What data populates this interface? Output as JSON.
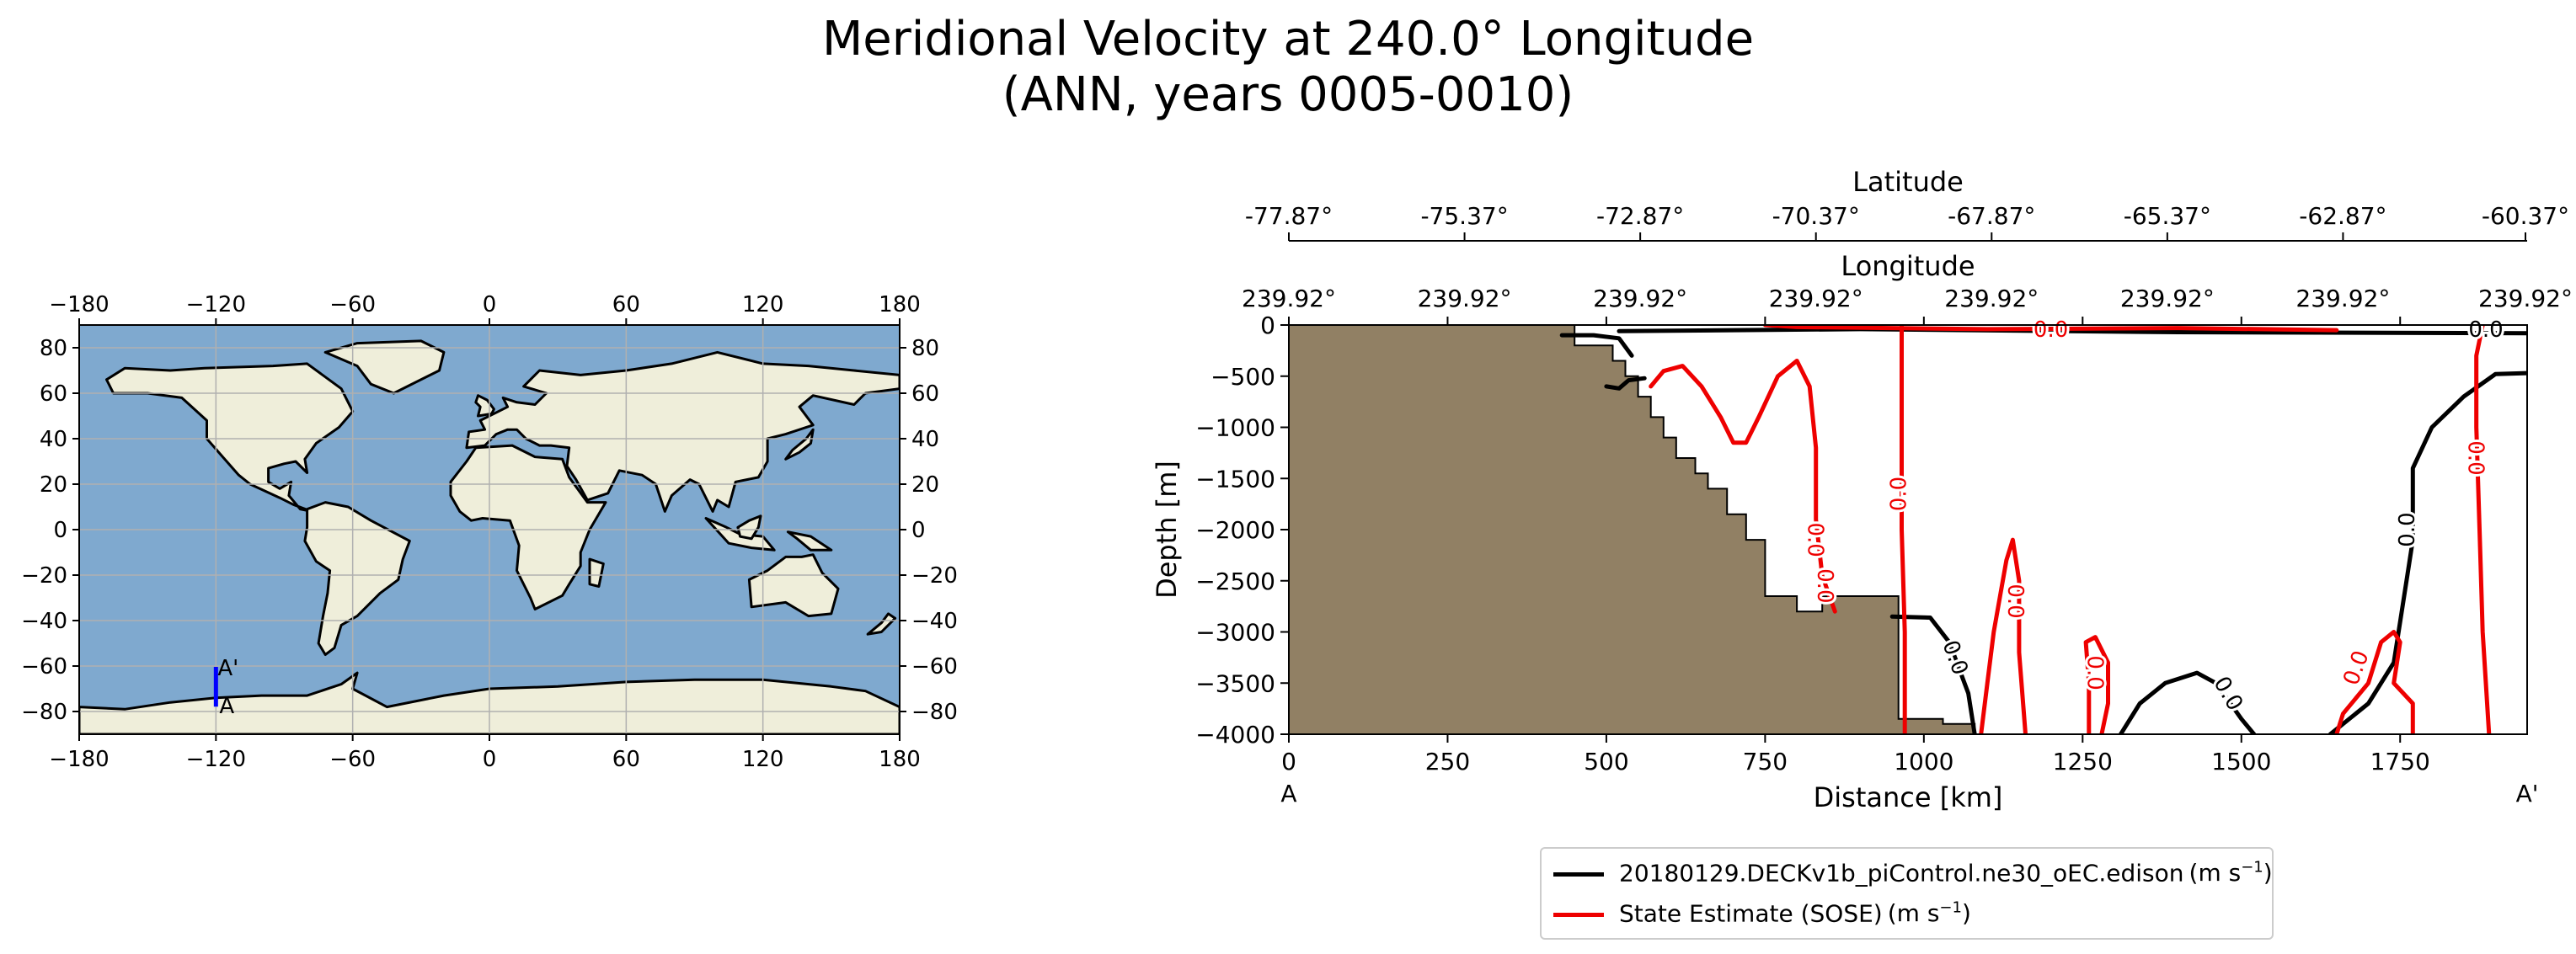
{
  "title": {
    "line1": "Meridional Velocity at 240.0° Longitude",
    "line2": "(ANN, years 0005-0010)"
  },
  "colors": {
    "ocean": "#7fa9cf",
    "land": "#efeeda",
    "bathymetry": "#918064",
    "model": "#000000",
    "obs": "#ee0000",
    "transect": "#0000ff"
  },
  "chart_data": [
    {
      "type": "map",
      "projection": "plate-carree",
      "xticks": [
        "−180",
        "−120",
        "−60",
        "0",
        "60",
        "120",
        "180"
      ],
      "yticks": [
        "80",
        "60",
        "40",
        "20",
        "0",
        "−20",
        "−40",
        "−60",
        "−80"
      ],
      "xlim": [
        -180,
        180
      ],
      "ylim": [
        -90,
        90
      ],
      "grid": true,
      "transect": {
        "lon": -120,
        "lat_start": -77.87,
        "lat_end": -60.37,
        "start_label": "A",
        "end_label": "A'"
      }
    },
    {
      "type": "contour",
      "xlabel": "Distance [km]",
      "ylabel": "Depth [m]",
      "xlim": [
        0,
        1950
      ],
      "ylim": [
        -4000,
        0
      ],
      "xticks": [
        "0",
        "250",
        "500",
        "750",
        "1000",
        "1250",
        "1500",
        "1750"
      ],
      "yticks": [
        "0",
        "−500",
        "−1000",
        "−1500",
        "−2000",
        "−2500",
        "−3000",
        "−3500",
        "−4000"
      ],
      "start_label": "A",
      "end_label": "A'",
      "top_axis_1": {
        "label": "Latitude",
        "ticks": [
          "-77.87°",
          "-75.37°",
          "-72.87°",
          "-70.37°",
          "-67.87°",
          "-65.37°",
          "-62.87°",
          "-60.37°"
        ]
      },
      "top_axis_2": {
        "label": "Longitude",
        "ticks": [
          "239.92°",
          "239.92°",
          "239.92°",
          "239.92°",
          "239.92°",
          "239.92°",
          "239.92°",
          "239.92°"
        ]
      },
      "contour_label": "0.0",
      "series": [
        {
          "name": "20180129.DECKv1b_piControl.ne30_oEC.edison",
          "unit": "(m s⁻¹)",
          "color": "#000000",
          "lines": [
            [
              [
                430,
                -100
              ],
              [
                480,
                -100
              ],
              [
                520,
                -130
              ],
              [
                540,
                -300
              ]
            ],
            [
              [
                500,
                -600
              ],
              [
                520,
                -620
              ],
              [
                535,
                -540
              ],
              [
                560,
                -520
              ]
            ],
            [
              [
                950,
                -2850
              ],
              [
                1010,
                -2860
              ],
              [
                1040,
                -3100
              ],
              [
                1070,
                -3600
              ],
              [
                1080,
                -4000
              ]
            ],
            [
              [
                1310,
                -4000
              ],
              [
                1340,
                -3700
              ],
              [
                1380,
                -3500
              ],
              [
                1430,
                -3400
              ],
              [
                1460,
                -3500
              ],
              [
                1500,
                -3850
              ],
              [
                1520,
                -4000
              ]
            ],
            [
              [
                1640,
                -4000
              ],
              [
                1700,
                -3700
              ],
              [
                1740,
                -3300
              ],
              [
                1760,
                -2500
              ],
              [
                1770,
                -2100
              ],
              [
                1770,
                -1400
              ],
              [
                1800,
                -1000
              ],
              [
                1850,
                -700
              ],
              [
                1900,
                -480
              ],
              [
                1950,
                -470
              ]
            ],
            [
              [
                520,
                -60
              ],
              [
                900,
                -40
              ],
              [
                1400,
                -70
              ],
              [
                1950,
                -80
              ]
            ]
          ]
        },
        {
          "name": "State Estimate (SOSE)",
          "unit": "(m s⁻¹)",
          "color": "#ee0000",
          "lines": [
            [
              [
                570,
                -600
              ],
              [
                590,
                -450
              ],
              [
                620,
                -400
              ],
              [
                650,
                -600
              ],
              [
                680,
                -900
              ],
              [
                700,
                -1150
              ],
              [
                720,
                -1150
              ],
              [
                740,
                -900
              ],
              [
                770,
                -500
              ],
              [
                800,
                -350
              ],
              [
                820,
                -600
              ],
              [
                830,
                -1200
              ],
              [
                830,
                -1900
              ],
              [
                840,
                -2450
              ],
              [
                860,
                -2800
              ]
            ],
            [
              [
                970,
                -4000
              ],
              [
                970,
                -3000
              ],
              [
                965,
                -2000
              ],
              [
                965,
                -1000
              ],
              [
                965,
                0
              ]
            ],
            [
              [
                1090,
                -4000
              ],
              [
                1100,
                -3500
              ],
              [
                1110,
                -3000
              ],
              [
                1130,
                -2300
              ],
              [
                1140,
                -2100
              ],
              [
                1150,
                -2500
              ],
              [
                1150,
                -3200
              ],
              [
                1160,
                -4000
              ]
            ],
            [
              [
                1260,
                -4000
              ],
              [
                1260,
                -3500
              ],
              [
                1255,
                -3100
              ],
              [
                1270,
                -3050
              ],
              [
                1290,
                -3300
              ],
              [
                1290,
                -3700
              ],
              [
                1280,
                -4000
              ]
            ],
            [
              [
                1650,
                -4000
              ],
              [
                1660,
                -3800
              ],
              [
                1700,
                -3500
              ],
              [
                1720,
                -3100
              ],
              [
                1740,
                -3000
              ],
              [
                1750,
                -3100
              ],
              [
                1740,
                -3500
              ],
              [
                1770,
                -3700
              ],
              [
                1770,
                -4000
              ]
            ],
            [
              [
                1890,
                -4000
              ],
              [
                1880,
                -3000
              ],
              [
                1875,
                -2000
              ],
              [
                1870,
                -1000
              ],
              [
                1870,
                -300
              ],
              [
                1880,
                0
              ]
            ],
            [
              [
                750,
                0
              ],
              [
                800,
                -20
              ],
              [
                1100,
                -40
              ],
              [
                1400,
                -30
              ],
              [
                1650,
                -50
              ]
            ]
          ]
        }
      ]
    }
  ]
}
